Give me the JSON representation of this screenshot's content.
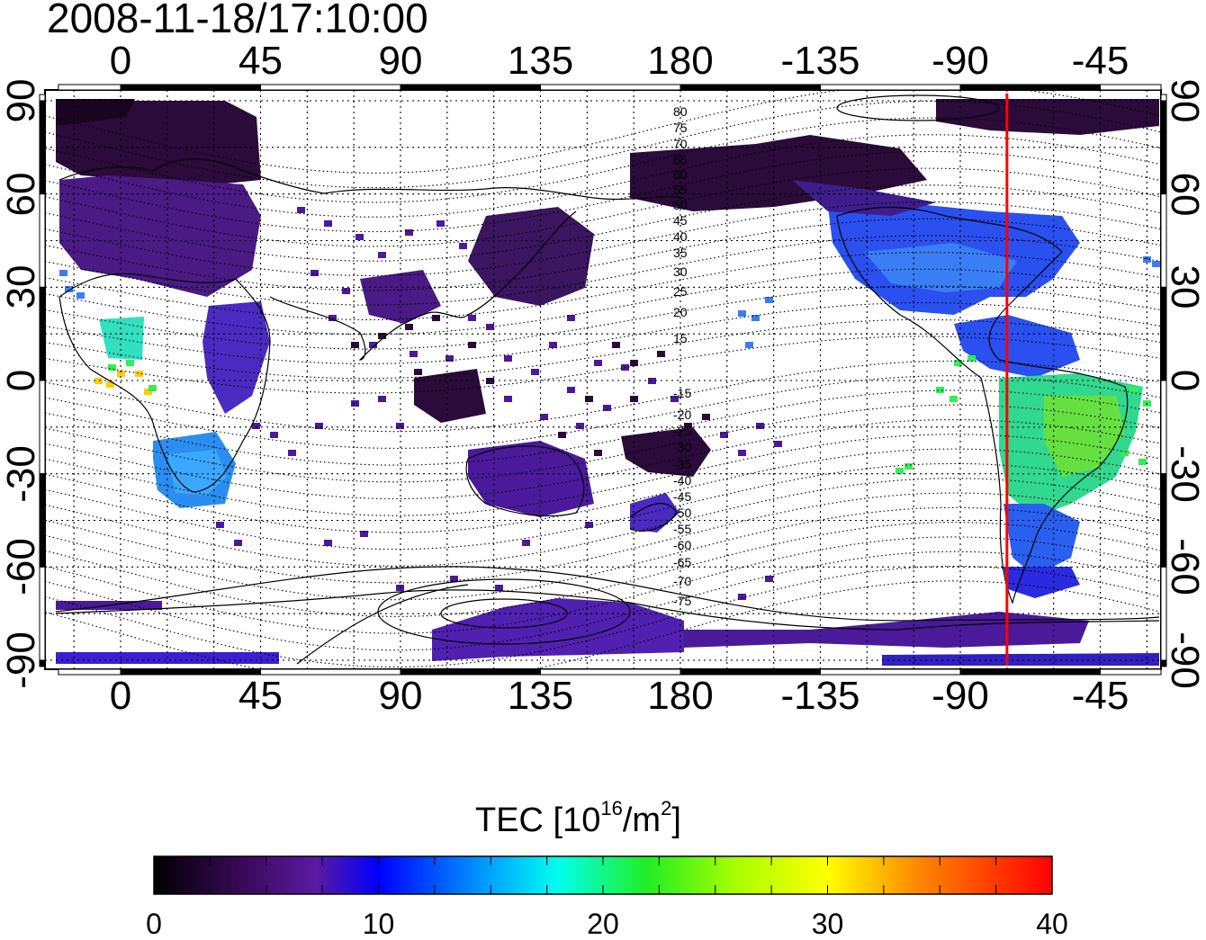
{
  "title": "2008-11-18/17:10:00",
  "map": {
    "lon_ticks_top": [
      "0",
      "45",
      "90",
      "135",
      "180",
      "-135",
      "-90",
      "-45"
    ],
    "lon_ticks_bottom": [
      "0",
      "45",
      "90",
      "135",
      "180",
      "-135",
      "-90",
      "-45"
    ],
    "lat_ticks_left": [
      "90",
      "60",
      "30",
      "0",
      "-30",
      "-60",
      "-90"
    ],
    "lat_ticks_right": [
      "90",
      "60",
      "30",
      "0",
      "-30",
      "-60",
      "-90"
    ],
    "lon_range": [
      -20,
      340
    ],
    "lat_range": [
      -92,
      92
    ],
    "grid": "dotted every 30 deg lon-equivalent / 15 deg lat",
    "meridian_marker": {
      "lon": -75,
      "color": "#ff0000"
    },
    "magnetic_latitude_labels": [
      "80",
      "75",
      "70",
      "65",
      "60",
      "55",
      "50",
      "45",
      "40",
      "35",
      "30",
      "25",
      "20",
      "15",
      "-15",
      "-20",
      "-25",
      "-30",
      "-35",
      "-40",
      "-45",
      "-50",
      "-55",
      "-60",
      "-65",
      "-70",
      "-75"
    ]
  },
  "colorbar": {
    "title_main": "TEC  [10",
    "title_sup1": "16",
    "title_mid": "/m",
    "title_sup2": "2",
    "title_end": "]",
    "ticks": [
      "0",
      "10",
      "20",
      "30",
      "40"
    ],
    "range": [
      0,
      40
    ],
    "colormap": [
      "#000000",
      "#3a0a5a",
      "#5a1aa0",
      "#2a2aff",
      "#00aaff",
      "#00ffee",
      "#22ff22",
      "#aaff00",
      "#ffff00",
      "#ff9900",
      "#ff0000"
    ]
  }
}
